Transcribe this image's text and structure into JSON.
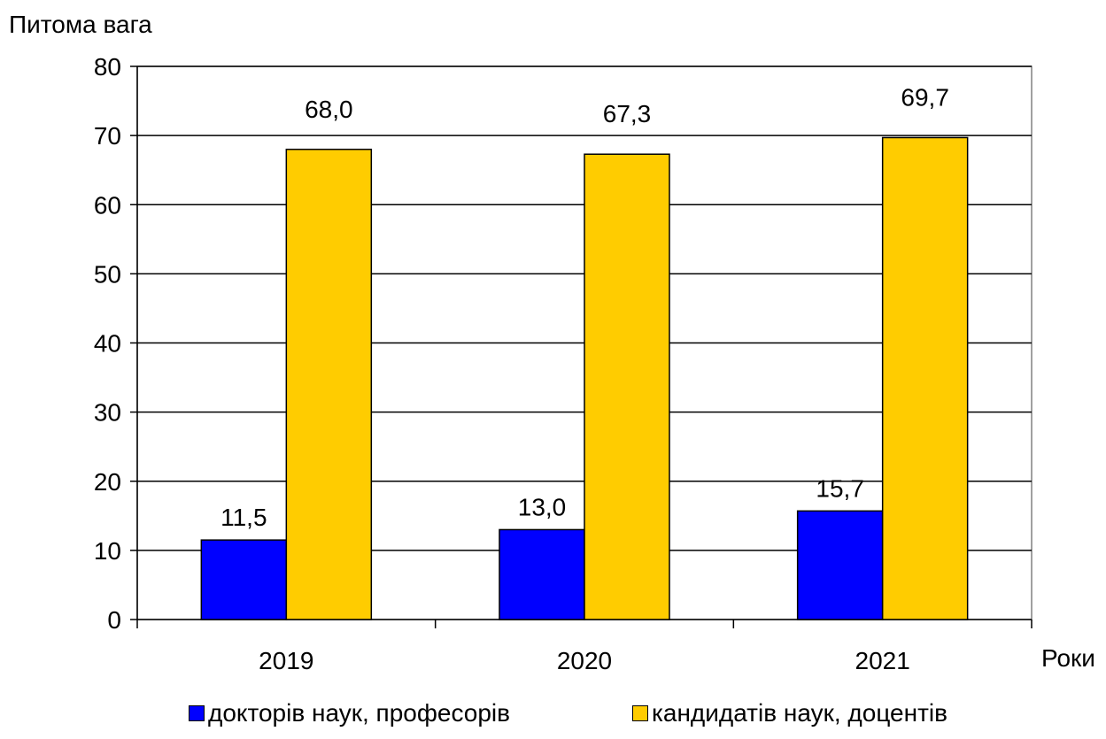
{
  "chart_data": {
    "type": "bar",
    "title": "",
    "ylabel": "Питома вага",
    "xlabel": "Роки",
    "ylim": [
      0,
      80
    ],
    "yticks": [
      0,
      10,
      20,
      30,
      40,
      50,
      60,
      70,
      80
    ],
    "grid": true,
    "legend_position": "bottom",
    "categories": [
      "2019",
      "2020",
      "2021"
    ],
    "series": [
      {
        "name": "докторів наук, професорів",
        "color": "#0000ff",
        "values": [
          11.5,
          13.0,
          15.7
        ],
        "labels": [
          "11,5",
          "13,0",
          "15,7"
        ]
      },
      {
        "name": "кандидатів наук, доцентів",
        "color": "#ffcc00",
        "values": [
          68.0,
          67.3,
          69.7
        ],
        "labels": [
          "68,0",
          "67,3",
          "69,7"
        ]
      }
    ]
  }
}
